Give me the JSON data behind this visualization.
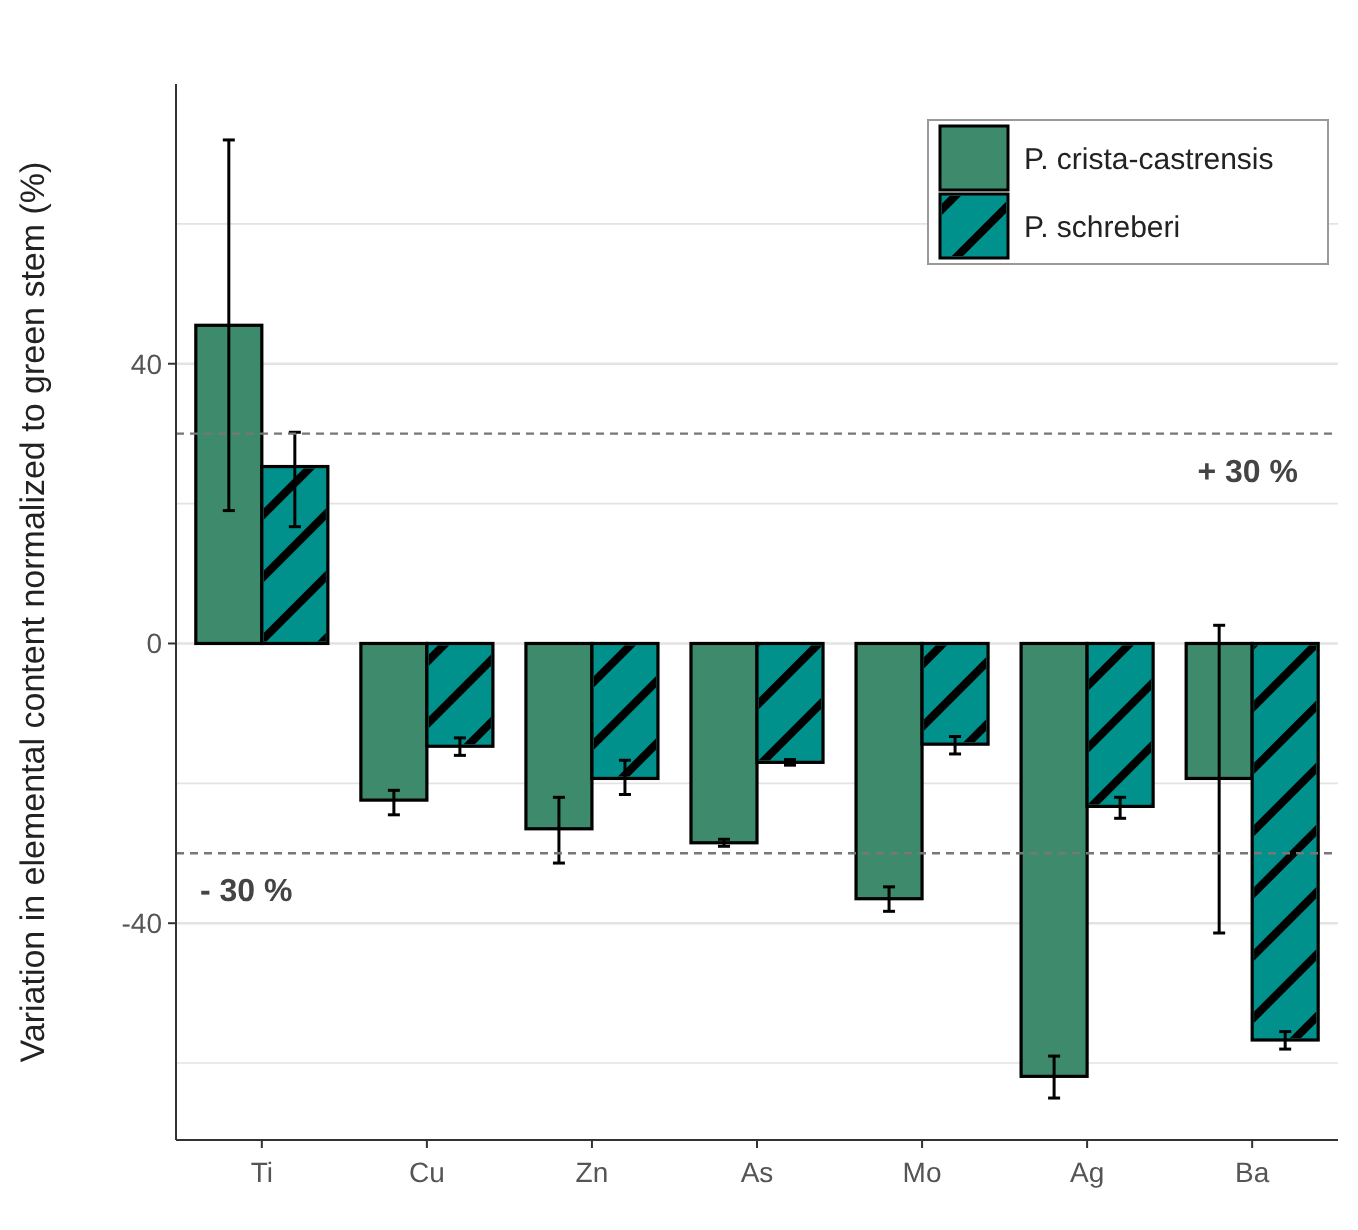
{
  "chart_data": {
    "type": "bar",
    "ylabel": "Variation in elemental content normalized to green stem (%)",
    "categories": [
      "Ti",
      "Cu",
      "Zn",
      "As",
      "Mo",
      "Ag",
      "Ba"
    ],
    "series": [
      {
        "name": "P. crista-castrensis",
        "color": "#3e8a6d",
        "values": [
          45.5,
          -22.4,
          -26.5,
          -28.5,
          -36.5,
          -61.9,
          -19.3
        ],
        "errors": [
          [
            19,
            72
          ],
          [
            -24.5,
            -21
          ],
          [
            -31.4,
            -22
          ],
          [
            -29,
            -28
          ],
          [
            -38.3,
            -34.8
          ],
          [
            -65,
            -59
          ],
          [
            -41.4,
            2.6
          ]
        ]
      },
      {
        "name": "P. schreberi",
        "color": "#00918c",
        "values": [
          25.3,
          -14.7,
          -19.3,
          -17,
          -14.4,
          -23.3,
          -56.7
        ],
        "errors": [
          [
            16.7,
            30.2
          ],
          [
            -16,
            -13.5
          ],
          [
            -21.6,
            -16.7
          ],
          [
            -17.4,
            -16.6
          ],
          [
            -15.8,
            -13.3
          ],
          [
            -25,
            -22
          ],
          [
            -58,
            -55.5
          ]
        ]
      }
    ],
    "ylim": [
      -71,
      80
    ],
    "yticks": [
      {
        "value": -60,
        "label": null
      },
      -40,
      {
        "value": -20,
        "label": null
      },
      0,
      {
        "value": 20,
        "label": null
      },
      40,
      {
        "value": 60,
        "label": null
      }
    ],
    "grid": "y",
    "legend": "top right",
    "ref_lines": [
      {
        "axis": "y",
        "value": 30,
        "label": "+ 30 %",
        "line_style": "dashed",
        "color": "#777777"
      },
      {
        "axis": "y",
        "value": -30,
        "label": "- 30 %",
        "line_style": "dashed",
        "color": "#777777"
      }
    ]
  }
}
